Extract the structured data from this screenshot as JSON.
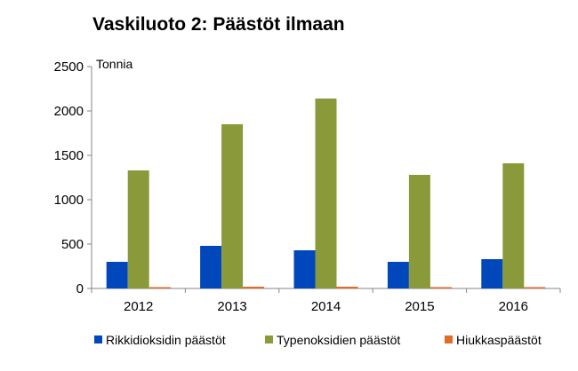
{
  "chart_data": {
    "type": "bar",
    "title": "Vaskiluoto 2: Päästöt ilmaan",
    "unit_label": "Tonnia",
    "xlabel": "",
    "ylabel": "",
    "categories": [
      "2012",
      "2013",
      "2014",
      "2015",
      "2016"
    ],
    "ylim": [
      0,
      2500
    ],
    "yticks": [
      0,
      500,
      1000,
      1500,
      2000,
      2500
    ],
    "grid": false,
    "legend_position": "bottom",
    "series": [
      {
        "name": "Rikkidioksidin päästöt",
        "color": "#0047BB",
        "values": [
          300,
          480,
          430,
          300,
          330
        ]
      },
      {
        "name": "Typenoksidien päästöt",
        "color": "#8A9A3B",
        "values": [
          1330,
          1850,
          2140,
          1280,
          1410
        ]
      },
      {
        "name": "Hiukkaspäästöt",
        "color": "#E06B2A",
        "values": [
          10,
          20,
          20,
          10,
          10
        ]
      }
    ]
  }
}
